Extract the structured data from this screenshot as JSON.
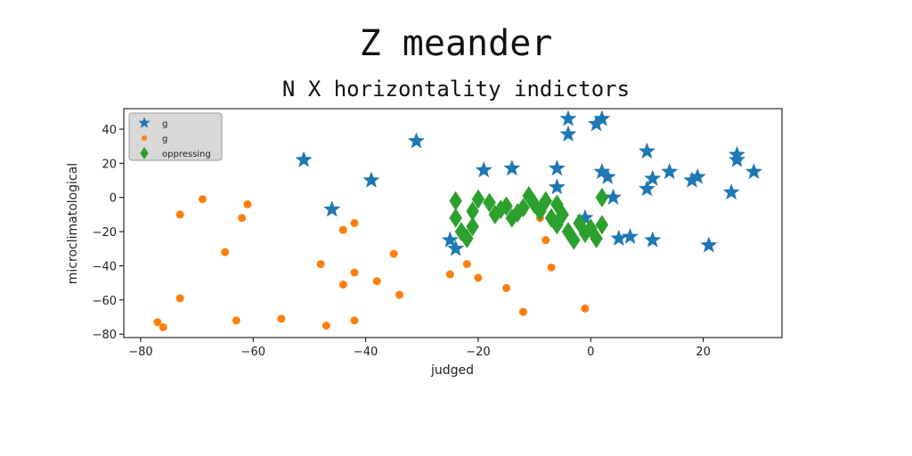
{
  "chart_data": {
    "type": "scatter",
    "title": "Z meander",
    "subtitle": "N X horizontality indictors",
    "xlabel": "judged",
    "ylabel": "microclimatological",
    "xlim": [
      -83,
      34
    ],
    "ylim": [
      -82,
      52
    ],
    "xticks": [
      -80,
      -60,
      -40,
      -20,
      0,
      20
    ],
    "yticks": [
      40,
      20,
      0,
      -20,
      -40,
      -60,
      -80
    ],
    "grid": false,
    "legend_position": "top-left",
    "series": [
      {
        "name": "g",
        "marker": "star",
        "color": "#1f77b4",
        "points": [
          [
            -51,
            22
          ],
          [
            -46,
            -7
          ],
          [
            -39,
            10
          ],
          [
            -31,
            33
          ],
          [
            -25,
            -25
          ],
          [
            -24,
            -30
          ],
          [
            -19,
            16
          ],
          [
            -14,
            17
          ],
          [
            -6,
            17
          ],
          [
            -6,
            6
          ],
          [
            -4,
            46
          ],
          [
            -4,
            37
          ],
          [
            -1,
            -12
          ],
          [
            1,
            43
          ],
          [
            2,
            46
          ],
          [
            2,
            15
          ],
          [
            3,
            12
          ],
          [
            4,
            0
          ],
          [
            5,
            -24
          ],
          [
            7,
            -23
          ],
          [
            10,
            27
          ],
          [
            10,
            5
          ],
          [
            11,
            11
          ],
          [
            11,
            -25
          ],
          [
            14,
            15
          ],
          [
            18,
            10
          ],
          [
            19,
            12
          ],
          [
            21,
            -28
          ],
          [
            25,
            3
          ],
          [
            26,
            25
          ],
          [
            26,
            22
          ],
          [
            29,
            15
          ]
        ]
      },
      {
        "name": "g",
        "marker": "circle",
        "color": "#ff7f0e",
        "points": [
          [
            -77,
            -73
          ],
          [
            -76,
            -76
          ],
          [
            -73,
            -10
          ],
          [
            -73,
            -59
          ],
          [
            -69,
            -1
          ],
          [
            -65,
            -32
          ],
          [
            -63,
            -72
          ],
          [
            -62,
            -12
          ],
          [
            -61,
            -4
          ],
          [
            -55,
            -71
          ],
          [
            -48,
            -39
          ],
          [
            -47,
            -75
          ],
          [
            -44,
            -19
          ],
          [
            -44,
            -51
          ],
          [
            -42,
            -15
          ],
          [
            -42,
            -72
          ],
          [
            -42,
            -44
          ],
          [
            -38,
            -49
          ],
          [
            -35,
            -33
          ],
          [
            -34,
            -57
          ],
          [
            -25,
            -45
          ],
          [
            -22,
            -39
          ],
          [
            -20,
            -47
          ],
          [
            -15,
            -53
          ],
          [
            -12,
            -67
          ],
          [
            -8,
            -25
          ],
          [
            -7,
            -41
          ],
          [
            -1,
            -65
          ],
          [
            -9,
            -12
          ],
          [
            -12,
            -8
          ]
        ]
      },
      {
        "name": "oppressing",
        "marker": "diamond",
        "color": "#2ca02c",
        "points": [
          [
            -24,
            -2
          ],
          [
            -24,
            -12
          ],
          [
            -23,
            -20
          ],
          [
            -22,
            -24
          ],
          [
            -21,
            -8
          ],
          [
            -21,
            -17
          ],
          [
            -20,
            -1
          ],
          [
            -18,
            -3
          ],
          [
            -17,
            -10
          ],
          [
            -16,
            -7
          ],
          [
            -15,
            -5
          ],
          [
            -14,
            -12
          ],
          [
            -13,
            -9
          ],
          [
            -12,
            -6
          ],
          [
            -11,
            1
          ],
          [
            -10,
            -4
          ],
          [
            -9,
            -8
          ],
          [
            -8,
            -2
          ],
          [
            -7,
            -12
          ],
          [
            -6,
            -16
          ],
          [
            -5,
            -10
          ],
          [
            -4,
            -20
          ],
          [
            -3,
            -25
          ],
          [
            -2,
            -15
          ],
          [
            -1,
            -21
          ],
          [
            0,
            -18
          ],
          [
            1,
            -24
          ],
          [
            2,
            0
          ],
          [
            2,
            -16
          ],
          [
            -6,
            -4
          ]
        ]
      }
    ]
  }
}
